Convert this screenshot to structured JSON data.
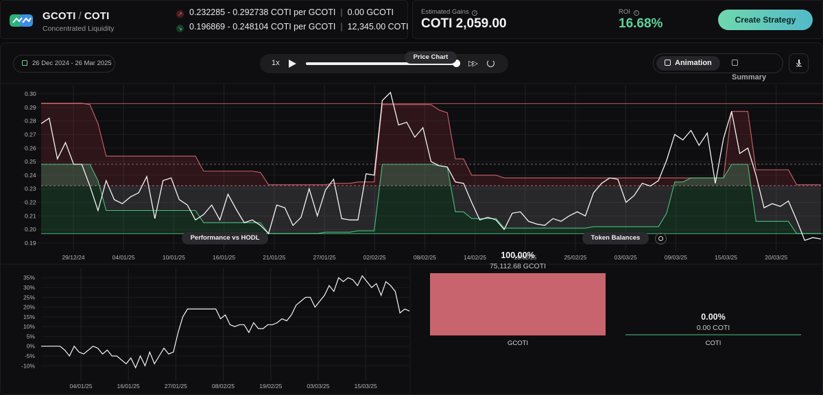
{
  "header": {
    "pair_base": "GCOTI",
    "pair_sep": "/",
    "pair_quote": "COTI",
    "subtitle": "Concentrated Liquidity",
    "range_upper": {
      "range": "0.232285 - 0.292738 COTI per GCOTI",
      "amount": "0.00 GCOTI",
      "color": "#e06b74"
    },
    "range_lower": {
      "range": "0.196869 - 0.248104 COTI per GCOTI",
      "amount": "12,345.00 COTI",
      "color": "#4fcf86"
    }
  },
  "stats": {
    "gains_label": "Estimated Gains",
    "gains_value": "COTI 2,059.00",
    "roi_label": "ROI",
    "roi_value": "16.68%",
    "roi_color": "#5fd39a"
  },
  "actions": {
    "create_strategy": "Create Strategy"
  },
  "controls": {
    "date_range": "26 Dec 2024 - 26 Mar 2025",
    "speed": "1x",
    "progress": 1.0,
    "view_options": [
      "Animation",
      "Summary"
    ],
    "active_view": "Animation"
  },
  "icons": [
    "logo-icon",
    "calendar-icon",
    "play-icon",
    "fast-forward-icon",
    "reset-icon",
    "film-icon",
    "summary-icon",
    "download-icon",
    "eye-icon",
    "info-icon"
  ],
  "price_chart": {
    "title": "Price Chart",
    "chart_data": {
      "type": "line",
      "ylim": [
        0.188,
        0.303
      ],
      "yticks": [
        "0.30",
        "0.29",
        "0.28",
        "0.27",
        "0.26",
        "0.25",
        "0.24",
        "0.23",
        "0.22",
        "0.21",
        "0.20",
        "0.19"
      ],
      "xticks": [
        "29/12/24",
        "04/01/25",
        "10/01/25",
        "16/01/25",
        "21/01/25",
        "27/01/25",
        "02/02/25",
        "08/02/25",
        "14/02/25",
        "19/02/25",
        "25/02/25",
        "03/03/25",
        "09/03/25",
        "15/03/25",
        "20/03/25"
      ],
      "price": [
        0.278,
        0.282,
        0.252,
        0.264,
        0.248,
        0.248,
        0.232,
        0.214,
        0.236,
        0.222,
        0.219,
        0.224,
        0.227,
        0.239,
        0.208,
        0.236,
        0.238,
        0.222,
        0.218,
        0.207,
        0.211,
        0.218,
        0.207,
        0.226,
        0.215,
        0.205,
        0.207,
        0.203,
        0.197,
        0.218,
        0.216,
        0.203,
        0.209,
        0.23,
        0.21,
        0.229,
        0.237,
        0.208,
        0.207,
        0.207,
        0.241,
        0.24,
        0.295,
        0.301,
        0.277,
        0.279,
        0.268,
        0.275,
        0.25,
        0.247,
        0.246,
        0.235,
        0.234,
        0.22,
        0.207,
        0.209,
        0.207,
        0.2,
        0.212,
        0.213,
        0.206,
        0.204,
        0.203,
        0.208,
        0.206,
        0.21,
        0.213,
        0.21,
        0.227,
        0.234,
        0.238,
        0.237,
        0.22,
        0.225,
        0.234,
        0.232,
        0.236,
        0.251,
        0.27,
        0.266,
        0.273,
        0.262,
        0.271,
        0.234,
        0.267,
        0.287,
        0.256,
        0.26,
        0.24,
        0.216,
        0.219,
        0.217,
        0.221,
        0.207,
        0.192,
        0.194,
        0.193
      ],
      "upper_band": [
        0.293,
        0.293,
        0.293,
        0.293,
        0.293,
        0.293,
        0.292,
        0.278,
        0.254,
        0.254,
        0.254,
        0.254,
        0.254,
        0.254,
        0.254,
        0.254,
        0.254,
        0.254,
        0.254,
        0.254,
        0.243,
        0.243,
        0.243,
        0.243,
        0.243,
        0.243,
        0.243,
        0.242,
        0.233,
        0.233,
        0.233,
        0.233,
        0.233,
        0.233,
        0.233,
        0.233,
        0.234,
        0.234,
        0.234,
        0.235,
        0.235,
        0.235,
        0.292,
        0.292,
        0.292,
        0.292,
        0.292,
        0.292,
        0.292,
        0.288,
        0.286,
        0.252,
        0.252,
        0.24,
        0.24,
        0.24,
        0.24,
        0.238,
        0.238,
        0.238,
        0.238,
        0.238,
        0.238,
        0.238,
        0.238,
        0.238,
        0.238,
        0.238,
        0.238,
        0.238,
        0.238,
        0.238,
        0.238,
        0.238,
        0.238,
        0.238,
        0.238,
        0.238,
        0.238,
        0.238,
        0.238,
        0.238,
        0.238,
        0.238,
        0.238,
        0.287,
        0.287,
        0.287,
        0.244,
        0.244,
        0.244,
        0.244,
        0.244,
        0.233,
        0.233,
        0.233,
        0.233
      ],
      "lower_band": [
        0.248,
        0.248,
        0.248,
        0.248,
        0.248,
        0.248,
        0.248,
        0.236,
        0.214,
        0.214,
        0.214,
        0.214,
        0.214,
        0.214,
        0.214,
        0.214,
        0.214,
        0.214,
        0.214,
        0.214,
        0.205,
        0.205,
        0.205,
        0.205,
        0.205,
        0.205,
        0.205,
        0.205,
        0.197,
        0.197,
        0.197,
        0.197,
        0.197,
        0.197,
        0.197,
        0.198,
        0.198,
        0.198,
        0.198,
        0.199,
        0.199,
        0.199,
        0.248,
        0.248,
        0.248,
        0.248,
        0.248,
        0.248,
        0.248,
        0.247,
        0.246,
        0.213,
        0.213,
        0.208,
        0.208,
        0.208,
        0.208,
        0.201,
        0.201,
        0.201,
        0.201,
        0.201,
        0.201,
        0.201,
        0.201,
        0.201,
        0.201,
        0.201,
        0.202,
        0.202,
        0.202,
        0.202,
        0.202,
        0.202,
        0.202,
        0.202,
        0.202,
        0.212,
        0.235,
        0.235,
        0.238,
        0.238,
        0.238,
        0.238,
        0.238,
        0.248,
        0.248,
        0.248,
        0.206,
        0.206,
        0.206,
        0.206,
        0.206,
        0.197,
        0.197,
        0.197,
        0.197
      ],
      "upper_range": [
        0.232285,
        0.292738
      ],
      "lower_range": [
        0.196869,
        0.248104
      ],
      "band_upper_color": "#e06b74",
      "band_lower_color": "#4fcf86"
    }
  },
  "performance_chart": {
    "title": "Performance vs HODL",
    "chart_data": {
      "type": "line",
      "ylim": [
        -12,
        37
      ],
      "yticks": [
        "35%",
        "30%",
        "25%",
        "20%",
        "15%",
        "10%",
        "5%",
        "0%",
        "-5%",
        "-10%"
      ],
      "xticks": [
        "04/01/25",
        "16/01/25",
        "27/01/25",
        "08/02/25",
        "19/02/25",
        "03/03/25",
        "15/03/25"
      ],
      "values": [
        0,
        0,
        0,
        0,
        0,
        -2,
        -5,
        0,
        -3,
        -4,
        -2,
        0,
        -1,
        -4,
        -2,
        -5,
        -5,
        -7,
        -9,
        -6,
        -11,
        -5,
        -10,
        -3,
        -9,
        -5,
        -1,
        -4,
        -3,
        7,
        15,
        19,
        19,
        19,
        19,
        19,
        19,
        19,
        14,
        16,
        11,
        10,
        11,
        11,
        7,
        12,
        9,
        9,
        11,
        11,
        12,
        14,
        13,
        16,
        21,
        23,
        25,
        25,
        20,
        23,
        26,
        31,
        28,
        35,
        33,
        35,
        34,
        31,
        36,
        33,
        30,
        32,
        26,
        33,
        31,
        28,
        17,
        19,
        18
      ]
    }
  },
  "token_balances": {
    "title": "Token Balances",
    "gcoti": {
      "pct": "100.00%",
      "amount": "75,112.68 GCOTI",
      "label": "GCOTI",
      "share": 1.0,
      "color": "#c8646e"
    },
    "coti": {
      "pct": "0.00%",
      "amount": "0.00 COTI",
      "label": "COTI",
      "share": 0.0,
      "color": "#2e6a48"
    }
  }
}
